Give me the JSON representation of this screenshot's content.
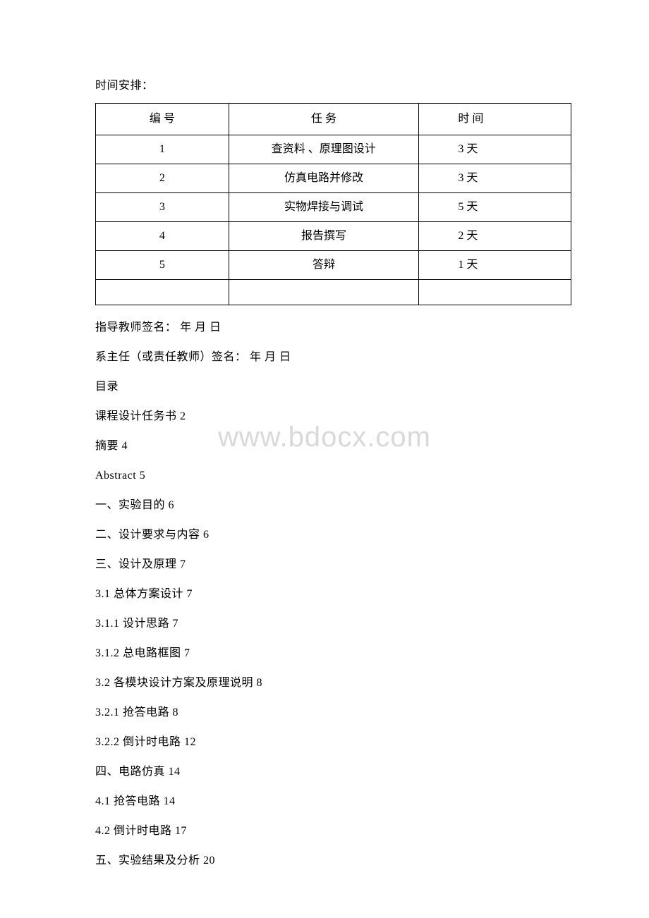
{
  "intro": "时间安排：",
  "table": {
    "headers": {
      "col1": "编 号",
      "col2": "任 务",
      "col3": "时 间"
    },
    "rows": [
      {
        "num": "1",
        "task": "查资料 、原理图设计",
        "time": "3 天"
      },
      {
        "num": "2",
        "task": "仿真电路并修改",
        "time": "3 天"
      },
      {
        "num": "3",
        "task": "实物焊接与调试",
        "time": "5 天"
      },
      {
        "num": "4",
        "task": "报告撰写",
        "time": "2 天"
      },
      {
        "num": "5",
        "task": "答辩",
        "time": "1 天"
      }
    ]
  },
  "lines": [
    "指导教师签名： 年 月 日",
    "系主任（或责任教师）签名： 年 月 日",
    "目录",
    "课程设计任务书 2",
    "摘要 4",
    "Abstract 5",
    "一、实验目的 6",
    "二、设计要求与内容 6",
    "三、设计及原理 7",
    "3.1 总体方案设计 7",
    "3.1.1 设计思路 7",
    "3.1.2 总电路框图 7",
    "3.2 各模块设计方案及原理说明 8",
    "3.2.1 抢答电路 8",
    "3.2.2 倒计时电路 12",
    "四、电路仿真 14",
    "4.1 抢答电路 14",
    "4.2 倒计时电路 17",
    "五、实验结果及分析 20"
  ],
  "watermark": "www.bdocx.com",
  "colors": {
    "background": "#ffffff",
    "text": "#000000",
    "border": "#000000",
    "watermark": "#d9d9d9"
  },
  "typography": {
    "body_fontsize": 16,
    "watermark_fontsize": 40,
    "font_family": "SimSun"
  }
}
